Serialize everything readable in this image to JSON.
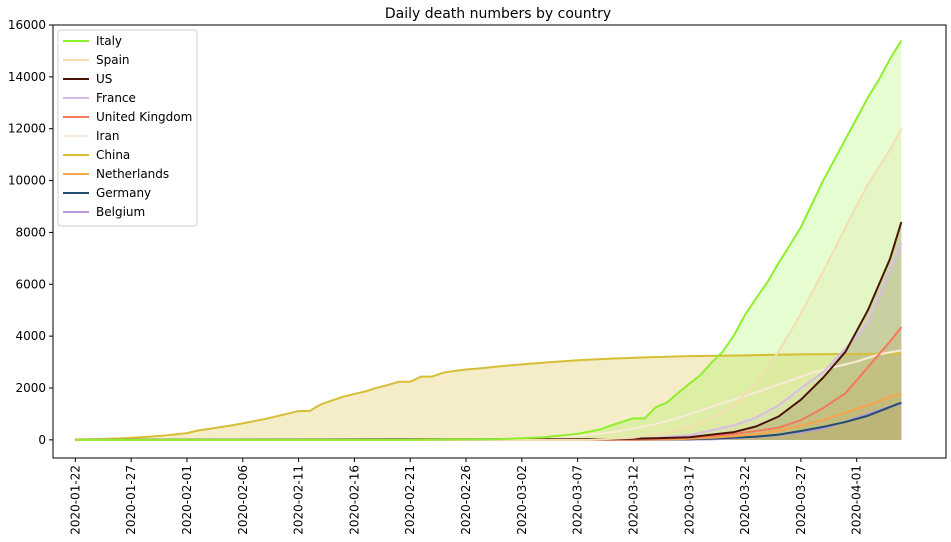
{
  "chart_data": {
    "type": "area",
    "title": "Daily death numbers by country",
    "xlabel": "",
    "ylabel": "",
    "x_start": "2020-01-22",
    "x_end": "2020-04-05",
    "xlim": [
      "2020-01-20",
      "2020-04-09"
    ],
    "ylim": [
      -700,
      16000
    ],
    "x_ticks": [
      "2020-01-22",
      "2020-01-27",
      "2020-02-01",
      "2020-02-06",
      "2020-02-11",
      "2020-02-16",
      "2020-02-21",
      "2020-02-26",
      "2020-03-02",
      "2020-03-07",
      "2020-03-12",
      "2020-03-17",
      "2020-03-22",
      "2020-03-27",
      "2020-04-01"
    ],
    "y_ticks": [
      0,
      2000,
      4000,
      6000,
      8000,
      10000,
      12000,
      14000,
      16000
    ],
    "legend_position": "top-left",
    "grid": false,
    "series": [
      {
        "name": "Italy",
        "color": "#8ef02c",
        "fill_opacity": 0.22,
        "line_opacity": 1,
        "points": [
          [
            "2020-01-22",
            0
          ],
          [
            "2020-02-20",
            0
          ],
          [
            "2020-02-29",
            30
          ],
          [
            "2020-03-04",
            100
          ],
          [
            "2020-03-07",
            230
          ],
          [
            "2020-03-09",
            400
          ],
          [
            "2020-03-11",
            700
          ],
          [
            "2020-03-12",
            830
          ],
          [
            "2020-03-13",
            830
          ],
          [
            "2020-03-14",
            1260
          ],
          [
            "2020-03-15",
            1440
          ],
          [
            "2020-03-16",
            1810
          ],
          [
            "2020-03-17",
            2160
          ],
          [
            "2020-03-18",
            2500
          ],
          [
            "2020-03-19",
            2980
          ],
          [
            "2020-03-20",
            3400
          ],
          [
            "2020-03-21",
            4030
          ],
          [
            "2020-03-22",
            4820
          ],
          [
            "2020-03-23",
            5470
          ],
          [
            "2020-03-24",
            6080
          ],
          [
            "2020-03-25",
            6820
          ],
          [
            "2020-03-26",
            7500
          ],
          [
            "2020-03-27",
            8200
          ],
          [
            "2020-03-28",
            9100
          ],
          [
            "2020-03-29",
            10000
          ],
          [
            "2020-03-30",
            10800
          ],
          [
            "2020-03-31",
            11600
          ],
          [
            "2020-04-01",
            12400
          ],
          [
            "2020-04-02",
            13200
          ],
          [
            "2020-04-03",
            13900
          ],
          [
            "2020-04-04",
            14700
          ],
          [
            "2020-04-05",
            15400
          ]
        ]
      },
      {
        "name": "Spain",
        "color": "#f5ddb2",
        "fill_opacity": 0.22,
        "line_opacity": 1,
        "points": [
          [
            "2020-01-22",
            0
          ],
          [
            "2020-03-08",
            0
          ],
          [
            "2020-03-12",
            80
          ],
          [
            "2020-03-15",
            290
          ],
          [
            "2020-03-17",
            490
          ],
          [
            "2020-03-19",
            830
          ],
          [
            "2020-03-21",
            1330
          ],
          [
            "2020-03-23",
            2200
          ],
          [
            "2020-03-25",
            3400
          ],
          [
            "2020-03-27",
            4860
          ],
          [
            "2020-03-29",
            6500
          ],
          [
            "2020-03-31",
            8200
          ],
          [
            "2020-04-02",
            9850
          ],
          [
            "2020-04-04",
            11200
          ],
          [
            "2020-04-05",
            12000
          ]
        ]
      },
      {
        "name": "US",
        "color": "#4c1408",
        "fill_opacity": 0.22,
        "line_opacity": 1,
        "points": [
          [
            "2020-01-22",
            0
          ],
          [
            "2020-03-10",
            30
          ],
          [
            "2020-03-14",
            60
          ],
          [
            "2020-03-17",
            100
          ],
          [
            "2020-03-19",
            200
          ],
          [
            "2020-03-21",
            300
          ],
          [
            "2020-03-23",
            520
          ],
          [
            "2020-03-25",
            900
          ],
          [
            "2020-03-27",
            1550
          ],
          [
            "2020-03-29",
            2400
          ],
          [
            "2020-03-31",
            3400
          ],
          [
            "2020-04-02",
            5000
          ],
          [
            "2020-04-04",
            7000
          ],
          [
            "2020-04-05",
            8400
          ]
        ]
      },
      {
        "name": "France",
        "color": "#d7bce8",
        "fill_opacity": 0.22,
        "line_opacity": 1,
        "points": [
          [
            "2020-01-22",
            0
          ],
          [
            "2020-03-10",
            30
          ],
          [
            "2020-03-14",
            80
          ],
          [
            "2020-03-17",
            180
          ],
          [
            "2020-03-19",
            370
          ],
          [
            "2020-03-21",
            560
          ],
          [
            "2020-03-23",
            860
          ],
          [
            "2020-03-25",
            1330
          ],
          [
            "2020-03-27",
            1990
          ],
          [
            "2020-03-29",
            2610
          ],
          [
            "2020-03-31",
            3520
          ],
          [
            "2020-04-02",
            4500
          ],
          [
            "2020-04-04",
            6500
          ],
          [
            "2020-04-05",
            7600
          ]
        ]
      },
      {
        "name": "United Kingdom",
        "color": "#f5785b",
        "fill_opacity": 0.22,
        "line_opacity": 1,
        "points": [
          [
            "2020-01-22",
            0
          ],
          [
            "2020-03-12",
            10
          ],
          [
            "2020-03-16",
            60
          ],
          [
            "2020-03-19",
            140
          ],
          [
            "2020-03-21",
            230
          ],
          [
            "2020-03-23",
            340
          ],
          [
            "2020-03-25",
            470
          ],
          [
            "2020-03-27",
            760
          ],
          [
            "2020-03-29",
            1230
          ],
          [
            "2020-03-31",
            1800
          ],
          [
            "2020-04-02",
            2800
          ],
          [
            "2020-04-04",
            3800
          ],
          [
            "2020-04-05",
            4350
          ]
        ]
      },
      {
        "name": "Iran",
        "color": "#faead8",
        "fill_opacity": 0.25,
        "line_opacity": 1,
        "points": [
          [
            "2020-01-22",
            0
          ],
          [
            "2020-02-20",
            2
          ],
          [
            "2020-02-26",
            20
          ],
          [
            "2020-03-02",
            70
          ],
          [
            "2020-03-06",
            120
          ],
          [
            "2020-03-08",
            190
          ],
          [
            "2020-03-10",
            290
          ],
          [
            "2020-03-12",
            430
          ],
          [
            "2020-03-14",
            610
          ],
          [
            "2020-03-16",
            850
          ],
          [
            "2020-03-18",
            1130
          ],
          [
            "2020-03-20",
            1430
          ],
          [
            "2020-03-22",
            1690
          ],
          [
            "2020-03-24",
            1980
          ],
          [
            "2020-03-26",
            2280
          ],
          [
            "2020-03-28",
            2590
          ],
          [
            "2020-03-30",
            2810
          ],
          [
            "2020-04-01",
            3020
          ],
          [
            "2020-04-03",
            3300
          ],
          [
            "2020-04-05",
            3450
          ]
        ]
      },
      {
        "name": "China",
        "color": "#d6be36",
        "fill_opacity": 0.28,
        "line_opacity": 1,
        "points": [
          [
            "2020-01-22",
            17
          ],
          [
            "2020-01-24",
            30
          ],
          [
            "2020-01-26",
            56
          ],
          [
            "2020-01-27",
            80
          ],
          [
            "2020-01-28",
            106
          ],
          [
            "2020-01-29",
            132
          ],
          [
            "2020-01-30",
            170
          ],
          [
            "2020-01-31",
            213
          ],
          [
            "2020-02-01",
            259
          ],
          [
            "2020-02-02",
            361
          ],
          [
            "2020-02-03",
            425
          ],
          [
            "2020-02-04",
            490
          ],
          [
            "2020-02-05",
            560
          ],
          [
            "2020-02-06",
            636
          ],
          [
            "2020-02-07",
            720
          ],
          [
            "2020-02-08",
            806
          ],
          [
            "2020-02-09",
            906
          ],
          [
            "2020-02-10",
            1010
          ],
          [
            "2020-02-11",
            1110
          ],
          [
            "2020-02-12",
            1116
          ],
          [
            "2020-02-13",
            1370
          ],
          [
            "2020-02-14",
            1520
          ],
          [
            "2020-02-15",
            1665
          ],
          [
            "2020-02-16",
            1770
          ],
          [
            "2020-02-17",
            1870
          ],
          [
            "2020-02-18",
            2005
          ],
          [
            "2020-02-19",
            2118
          ],
          [
            "2020-02-20",
            2240
          ],
          [
            "2020-02-21",
            2240
          ],
          [
            "2020-02-22",
            2440
          ],
          [
            "2020-02-23",
            2445
          ],
          [
            "2020-02-24",
            2595
          ],
          [
            "2020-02-25",
            2660
          ],
          [
            "2020-02-26",
            2715
          ],
          [
            "2020-02-27",
            2745
          ],
          [
            "2020-02-28",
            2790
          ],
          [
            "2020-02-29",
            2835
          ],
          [
            "2020-03-02",
            2910
          ],
          [
            "2020-03-04",
            2980
          ],
          [
            "2020-03-07",
            3070
          ],
          [
            "2020-03-10",
            3135
          ],
          [
            "2020-03-13",
            3180
          ],
          [
            "2020-03-17",
            3230
          ],
          [
            "2020-03-22",
            3260
          ],
          [
            "2020-03-27",
            3295
          ],
          [
            "2020-04-01",
            3310
          ],
          [
            "2020-04-05",
            3330
          ]
        ]
      },
      {
        "name": "Netherlands",
        "color": "#f5a54a",
        "fill_opacity": 0.22,
        "line_opacity": 1,
        "points": [
          [
            "2020-01-22",
            0
          ],
          [
            "2020-03-12",
            5
          ],
          [
            "2020-03-16",
            25
          ],
          [
            "2020-03-19",
            80
          ],
          [
            "2020-03-21",
            140
          ],
          [
            "2020-03-23",
            210
          ],
          [
            "2020-03-25",
            360
          ],
          [
            "2020-03-27",
            550
          ],
          [
            "2020-03-29",
            770
          ],
          [
            "2020-03-31",
            1050
          ],
          [
            "2020-04-02",
            1340
          ],
          [
            "2020-04-04",
            1650
          ],
          [
            "2020-04-05",
            1770
          ]
        ]
      },
      {
        "name": "Germany",
        "color": "#1f4e6e",
        "fill_opacity": 0.22,
        "line_opacity": 1,
        "points": [
          [
            "2020-01-22",
            0
          ],
          [
            "2020-03-14",
            10
          ],
          [
            "2020-03-17",
            25
          ],
          [
            "2020-03-19",
            45
          ],
          [
            "2020-03-21",
            85
          ],
          [
            "2020-03-23",
            125
          ],
          [
            "2020-03-25",
            200
          ],
          [
            "2020-03-27",
            340
          ],
          [
            "2020-03-29",
            500
          ],
          [
            "2020-03-31",
            690
          ],
          [
            "2020-04-02",
            930
          ],
          [
            "2020-04-04",
            1270
          ],
          [
            "2020-04-05",
            1440
          ]
        ]
      },
      {
        "name": "Belgium",
        "color": "#b79ad8",
        "fill_opacity": 0.22,
        "line_opacity": 1,
        "points": [
          [
            "2020-01-22",
            0
          ],
          [
            "2020-03-16",
            5
          ],
          [
            "2020-03-19",
            20
          ],
          [
            "2020-03-21",
            60
          ],
          [
            "2020-03-23",
            110
          ],
          [
            "2020-03-25",
            180
          ],
          [
            "2020-03-27",
            290
          ],
          [
            "2020-03-29",
            430
          ],
          [
            "2020-03-31",
            700
          ],
          [
            "2020-04-02",
            1010
          ],
          [
            "2020-04-04",
            1280
          ],
          [
            "2020-04-05",
            1380
          ]
        ]
      }
    ]
  }
}
